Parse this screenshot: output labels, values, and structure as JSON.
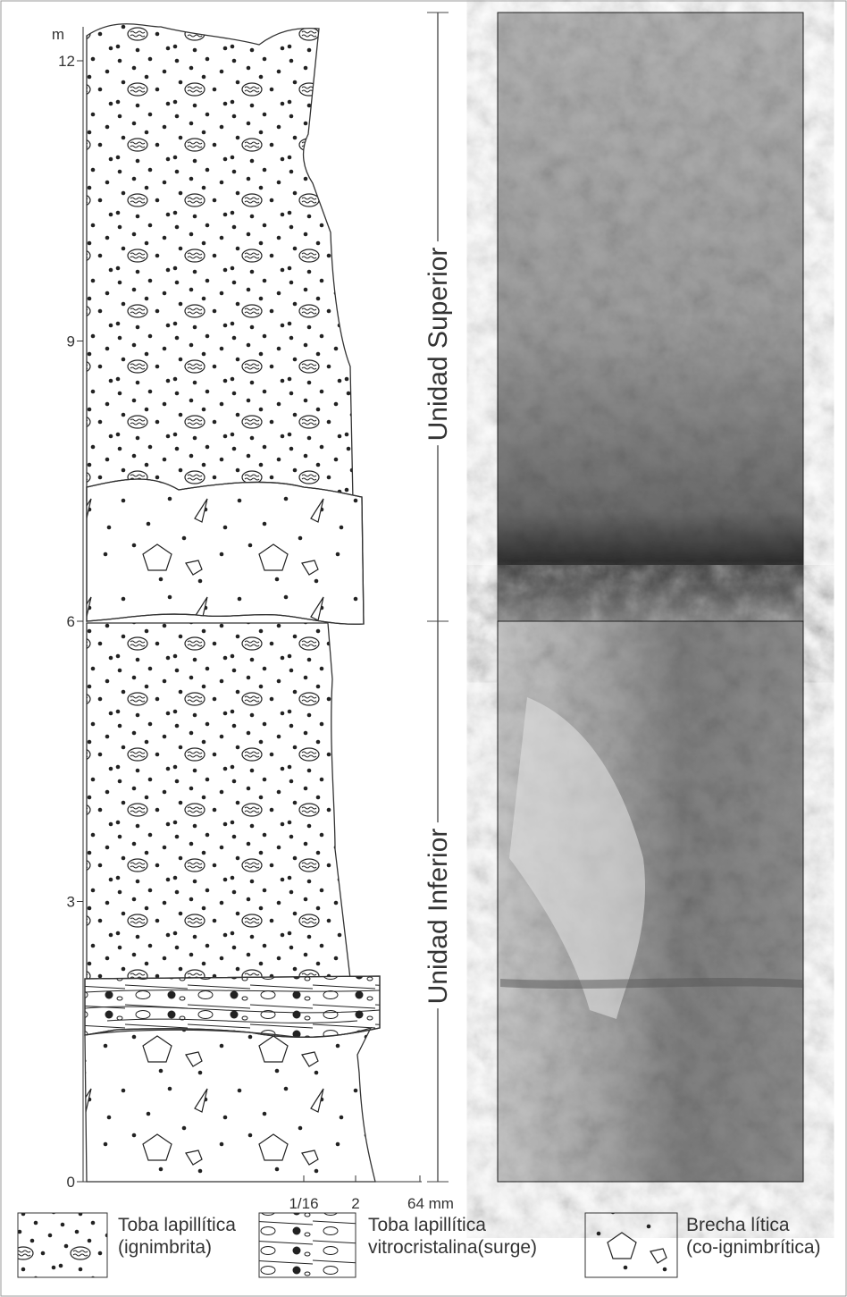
{
  "depth_axis": {
    "unit": "m",
    "ticks": [
      12,
      9,
      6,
      3,
      0
    ]
  },
  "grain_size_axis": {
    "labels": [
      "1/16",
      "2",
      "64 mm"
    ]
  },
  "units": [
    "Unidad Superior",
    "Unidad Inferior"
  ],
  "legend": [
    {
      "title": "Toba lapillítica",
      "subtitle": "(ignimbrita)"
    },
    {
      "title": "Toba lapillítica",
      "subtitle": "vitrocristalina(surge)"
    },
    {
      "title": "Brecha lítica",
      "subtitle": "(co-ignimbrítica)"
    }
  ]
}
